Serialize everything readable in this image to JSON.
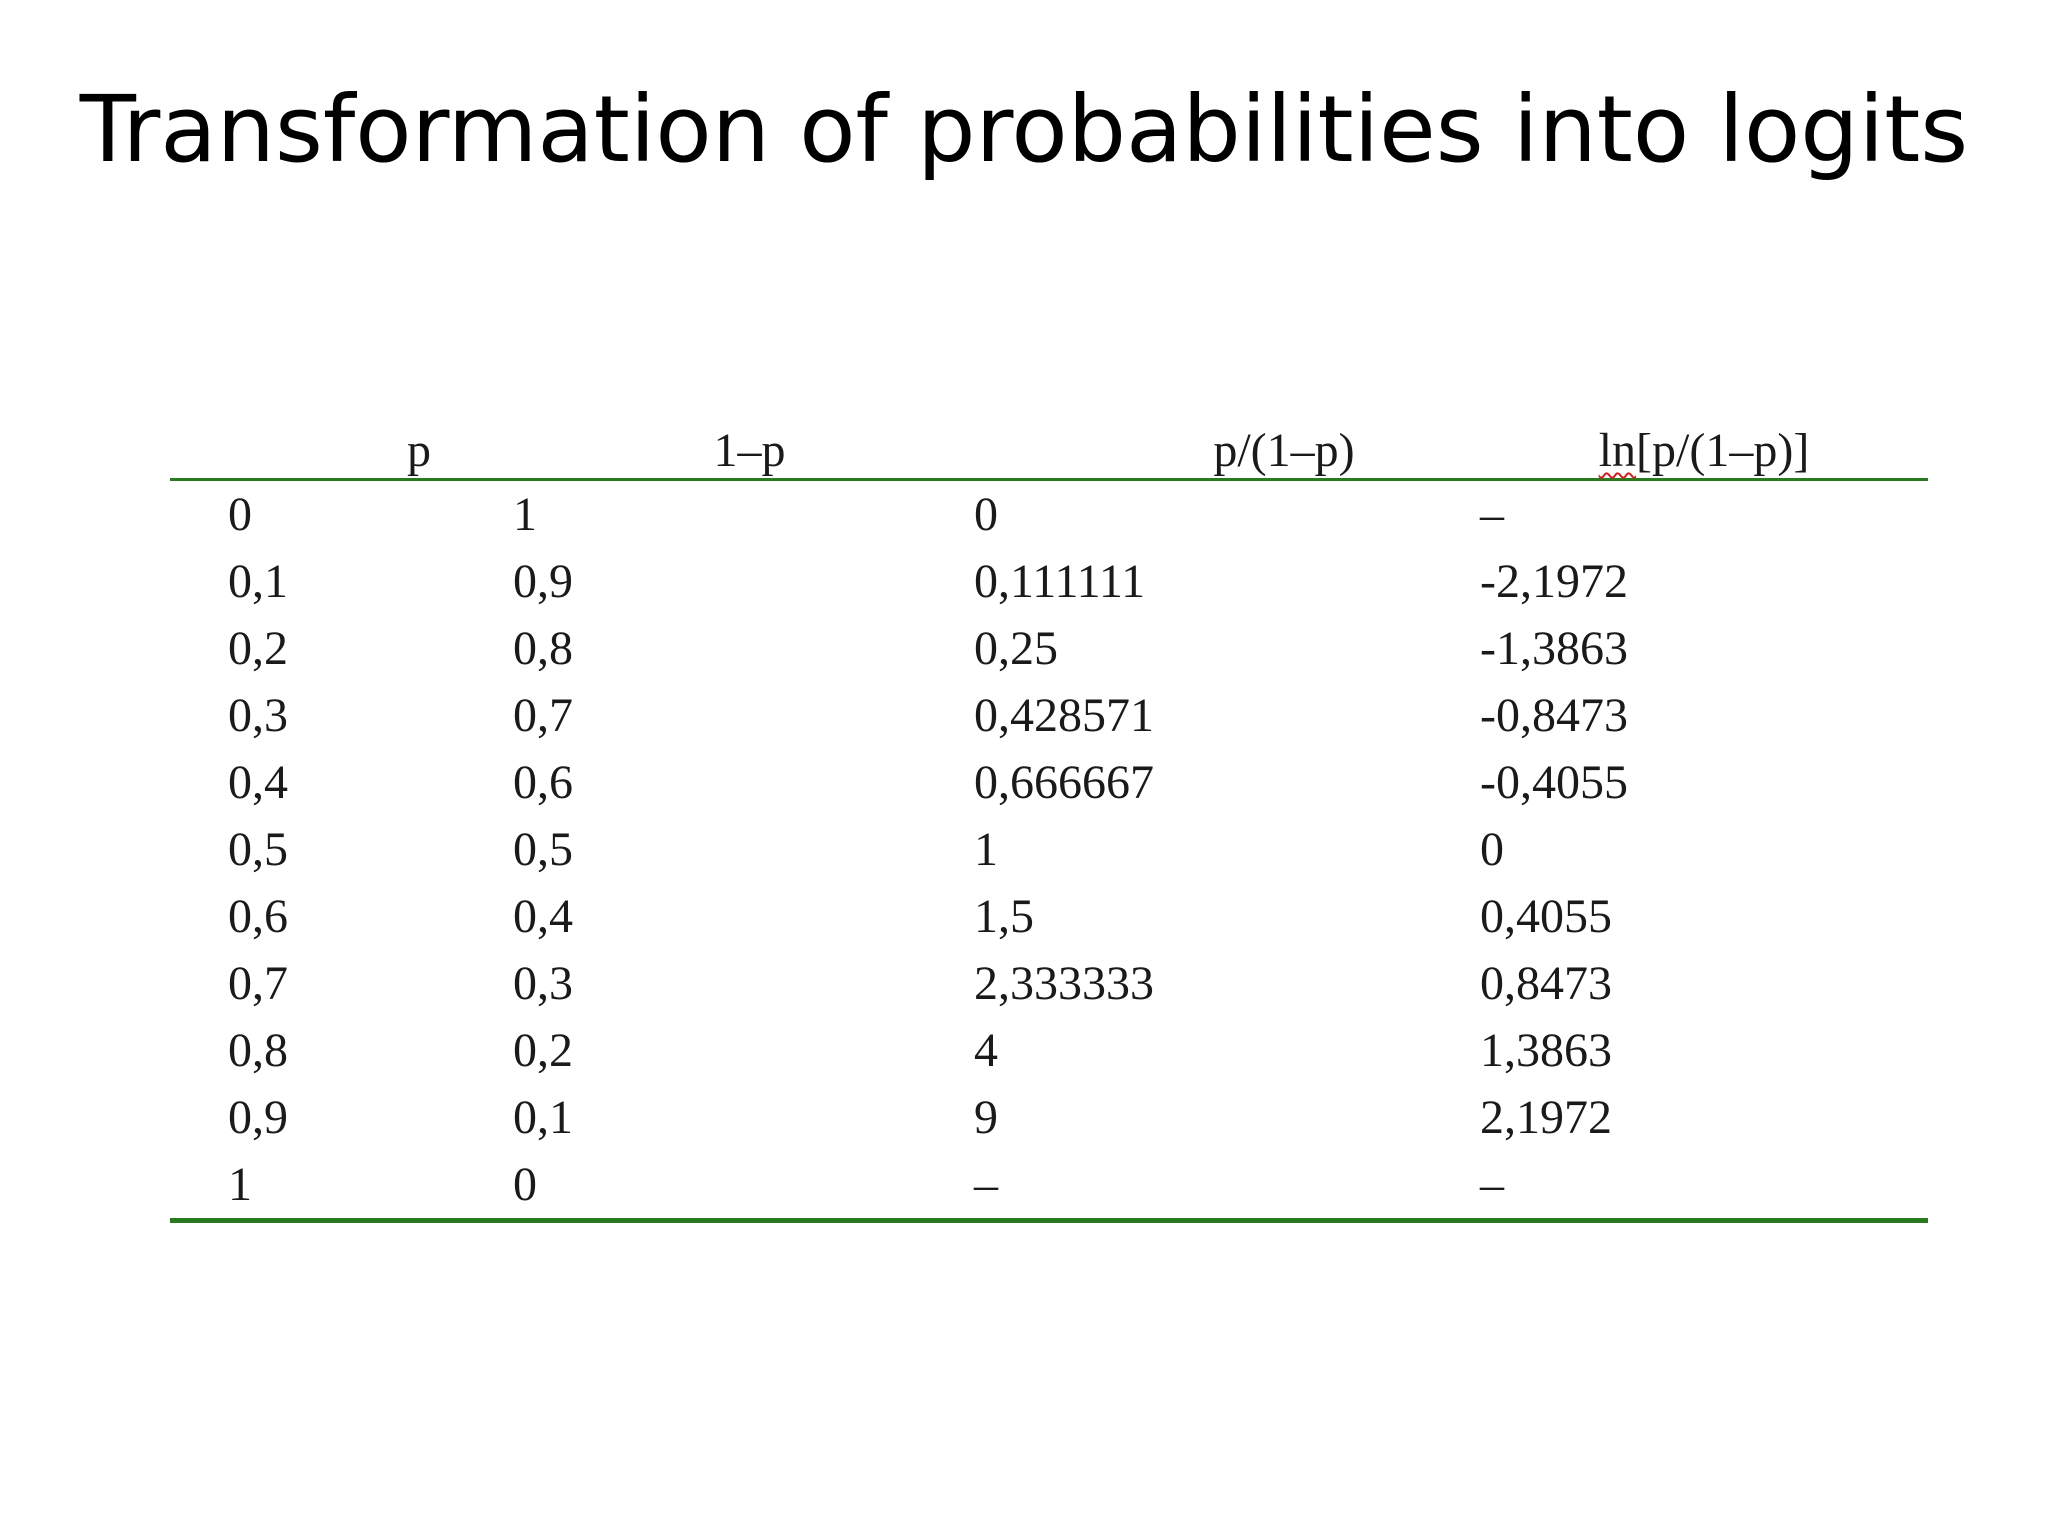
{
  "slide": {
    "title": "Transformation of probabilities into logits"
  },
  "table": {
    "headers": {
      "p": "p",
      "one_minus_p": "1–p",
      "odds": "p/(1–p)",
      "logit_ln": "ln",
      "logit_rest": "[p/(1–p)]"
    },
    "rows": [
      {
        "p": "0",
        "q": "1",
        "odds": "0",
        "logit": "–"
      },
      {
        "p": "0,1",
        "q": "0,9",
        "odds": "0,111111",
        "logit": "-2,1972"
      },
      {
        "p": "0,2",
        "q": "0,8",
        "odds": "0,25",
        "logit": "-1,3863"
      },
      {
        "p": "0,3",
        "q": "0,7",
        "odds": "0,428571",
        "logit": "-0,8473"
      },
      {
        "p": "0,4",
        "q": "0,6",
        "odds": "0,666667",
        "logit": "-0,4055"
      },
      {
        "p": "0,5",
        "q": "0,5",
        "odds": "1",
        "logit": "0"
      },
      {
        "p": "0,6",
        "q": "0,4",
        "odds": "1,5",
        "logit": "0,4055"
      },
      {
        "p": "0,7",
        "q": "0,3",
        "odds": "2,333333",
        "logit": "0,8473"
      },
      {
        "p": "0,8",
        "q": "0,2",
        "odds": "4",
        "logit": "1,3863"
      },
      {
        "p": "0,9",
        "q": "0,1",
        "odds": "9",
        "logit": "2,1972"
      },
      {
        "p": "1",
        "q": "0",
        "odds": "–",
        "logit": "–"
      }
    ]
  },
  "colors": {
    "rule": "#2a7a1f",
    "text": "#1a1a1a",
    "spellcheck": "#d02020"
  }
}
